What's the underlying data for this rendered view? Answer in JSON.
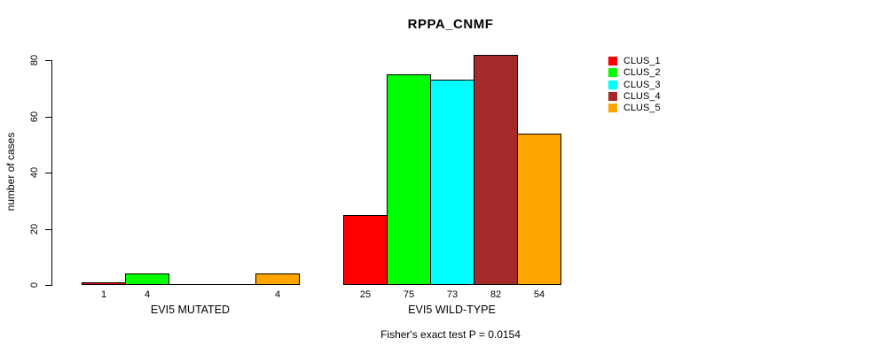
{
  "title": "RPPA_CNMF",
  "footer": "Fisher's exact test P = 0.0154",
  "y_axis": {
    "label": "number of cases",
    "ticks": [
      0,
      20,
      40,
      60,
      80
    ]
  },
  "legend": {
    "position": "right",
    "items": [
      {
        "label": "CLUS_1",
        "color": "#FF0000"
      },
      {
        "label": "CLUS_2",
        "color": "#00FF00"
      },
      {
        "label": "CLUS_3",
        "color": "#00FFFF"
      },
      {
        "label": "CLUS_4",
        "color": "#A52A2A"
      },
      {
        "label": "CLUS_5",
        "color": "#FFA500"
      }
    ]
  },
  "chart_data": {
    "type": "bar",
    "title": "RPPA_CNMF",
    "xlabel": "",
    "ylabel": "number of cases",
    "ylim": [
      0,
      80
    ],
    "grid": false,
    "legend_position": "right",
    "categories": [
      "EVI5 MUTATED",
      "EVI5 WILD-TYPE"
    ],
    "series": [
      {
        "name": "CLUS_1",
        "color": "#FF0000",
        "values": [
          1,
          25
        ]
      },
      {
        "name": "CLUS_2",
        "color": "#00FF00",
        "values": [
          4,
          75
        ]
      },
      {
        "name": "CLUS_3",
        "color": "#00FFFF",
        "values": [
          0,
          73
        ]
      },
      {
        "name": "CLUS_4",
        "color": "#A52A2A",
        "values": [
          0,
          82
        ]
      },
      {
        "name": "CLUS_5",
        "color": "#FFA500",
        "values": [
          4,
          54
        ]
      }
    ],
    "bar_value_labels": {
      "shown_when": "value > 0"
    },
    "annotation": "Fisher's exact test P = 0.0154"
  }
}
